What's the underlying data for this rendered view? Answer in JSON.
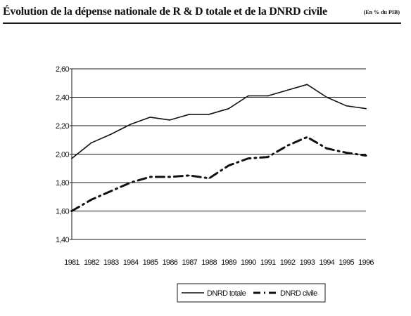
{
  "page": {
    "title": "Évolution de la dépense nationale de R & D totale et de la DNRD civile",
    "unit_note": "(En % du PIB)"
  },
  "chart_data": {
    "type": "line",
    "title": "Évolution de la dépense nationale de R & D totale et de la DNRD civile",
    "subtitle": "(En % du PIB)",
    "xlabel": "",
    "ylabel": "",
    "x": [
      "1981",
      "1982",
      "1983",
      "1984",
      "1985",
      "1986",
      "1987",
      "1988",
      "1989",
      "1990",
      "1991",
      "1992",
      "1993",
      "1994",
      "1995",
      "1996"
    ],
    "ylim": [
      1.4,
      2.6
    ],
    "yticks": [
      "1,40",
      "1,60",
      "1,80",
      "2,00",
      "2,20",
      "2,40",
      "2,60"
    ],
    "ytick_values": [
      1.4,
      1.6,
      1.8,
      2.0,
      2.2,
      2.4,
      2.6
    ],
    "grid": "horizontal",
    "legend_position": "bottom",
    "series": [
      {
        "name": "DNRD totale",
        "style": "solid",
        "color": "#111111",
        "values": [
          1.97,
          2.08,
          2.14,
          2.21,
          2.26,
          2.24,
          2.28,
          2.28,
          2.32,
          2.41,
          2.41,
          2.45,
          2.49,
          2.4,
          2.34,
          2.32
        ]
      },
      {
        "name": "DNRD civile",
        "style": "dash-dot",
        "color": "#111111",
        "values": [
          1.6,
          1.68,
          1.74,
          1.8,
          1.84,
          1.84,
          1.85,
          1.83,
          1.92,
          1.97,
          1.98,
          2.06,
          2.12,
          2.04,
          2.01,
          1.99
        ]
      }
    ]
  }
}
